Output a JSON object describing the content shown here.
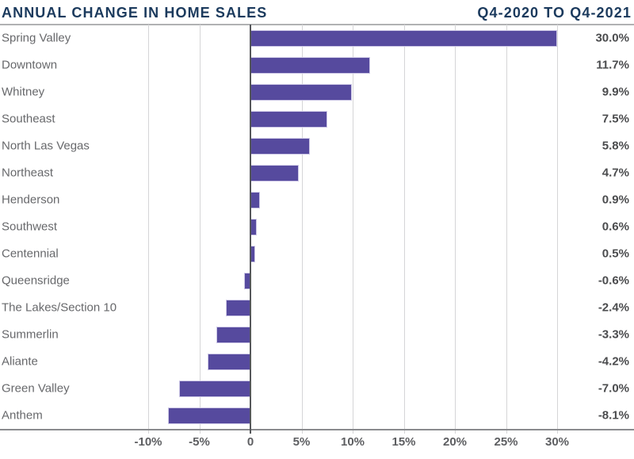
{
  "header": {
    "title": "ANNUAL CHANGE IN HOME SALES",
    "subtitle": "Q4-2020 TO Q4-2021"
  },
  "chart_data": {
    "type": "bar",
    "orientation": "horizontal",
    "title": "ANNUAL CHANGE IN HOME SALES",
    "subtitle": "Q4-2020 TO Q4-2021",
    "categories": [
      "Spring Valley",
      "Downtown",
      "Whitney",
      "Southeast",
      "North Las Vegas",
      "Northeast",
      "Henderson",
      "Southwest",
      "Centennial",
      "Queensridge",
      "The Lakes/Section 10",
      "Summerlin",
      "Aliante",
      "Green Valley",
      "Anthem"
    ],
    "values": [
      30.0,
      11.7,
      9.9,
      7.5,
      5.8,
      4.7,
      0.9,
      0.6,
      0.5,
      -0.6,
      -2.4,
      -3.3,
      -4.2,
      -7.0,
      -8.1
    ],
    "value_labels": [
      "30.0%",
      "11.7%",
      "9.9%",
      "7.5%",
      "5.8%",
      "4.7%",
      "0.9%",
      "0.6%",
      "0.5%",
      "-0.6%",
      "-2.4%",
      "-3.3%",
      "-4.2%",
      "-7.0%",
      "-8.1%"
    ],
    "xlabel": "",
    "ylabel": "",
    "xlim": [
      -10,
      30
    ],
    "x_ticks": [
      -10,
      -5,
      0,
      5,
      10,
      15,
      20,
      25,
      30
    ],
    "x_tick_labels": [
      "-10%",
      "-5%",
      "0",
      "5%",
      "10%",
      "15%",
      "20%",
      "25%",
      "30%"
    ],
    "grid": true,
    "legend": false,
    "colors": {
      "bar": "#564a9e",
      "bar_border": "#cdc8e6",
      "title": "#1b3a5d",
      "category_label": "#67686b",
      "value_label": "#4b4c4e",
      "tick_label": "#5d5e61",
      "gridline": "#d5d5d7",
      "zero_line": "#55575a",
      "axis_line": "#8a8b8e",
      "header_rule": "#b0b1b3",
      "background": "#ffffff"
    }
  }
}
